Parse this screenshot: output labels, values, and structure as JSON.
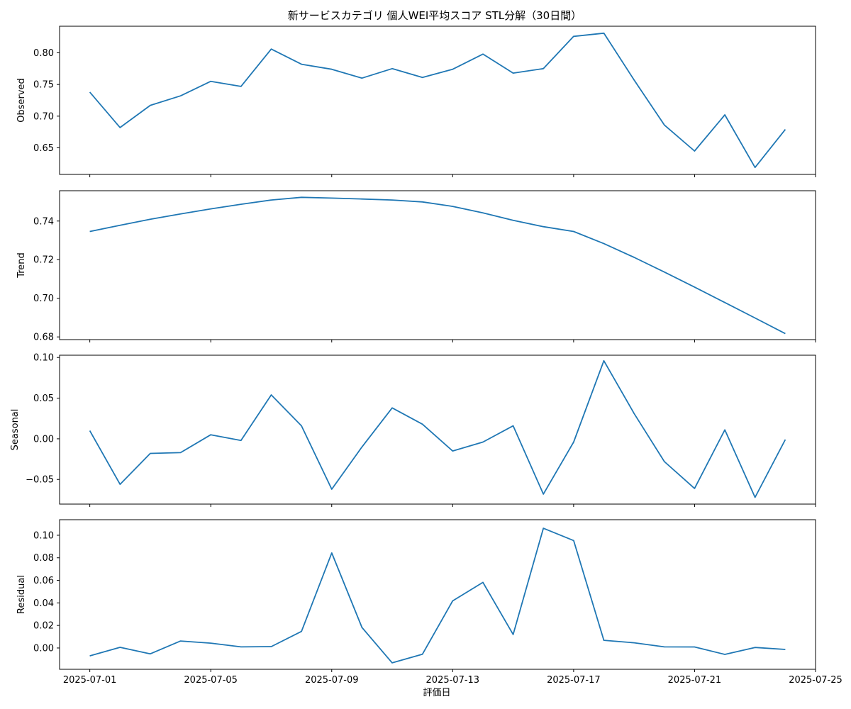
{
  "chart_data": {
    "type": "line",
    "title": "新サービスカテゴリ 個人WEI平均スコア STL分解（30日間）",
    "xlabel": "評価日",
    "x": [
      "2025-07-01",
      "2025-07-02",
      "2025-07-03",
      "2025-07-04",
      "2025-07-05",
      "2025-07-06",
      "2025-07-07",
      "2025-07-08",
      "2025-07-09",
      "2025-07-10",
      "2025-07-11",
      "2025-07-12",
      "2025-07-13",
      "2025-07-14",
      "2025-07-15",
      "2025-07-16",
      "2025-07-17",
      "2025-07-18",
      "2025-07-19",
      "2025-07-20",
      "2025-07-21",
      "2025-07-22",
      "2025-07-23",
      "2025-07-24"
    ],
    "xlim": [
      "2025-06-30",
      "2025-07-25"
    ],
    "x_ticks": [
      "2025-07-01",
      "2025-07-05",
      "2025-07-09",
      "2025-07-13",
      "2025-07-17",
      "2025-07-21",
      "2025-07-25"
    ],
    "color": "#1f77b4",
    "panels": [
      {
        "ylabel": "Observed",
        "ylim": [
          0.608,
          0.842
        ],
        "yticks": [
          "0.65",
          "0.70",
          "0.75",
          "0.80"
        ],
        "values": [
          0.738,
          0.682,
          0.717,
          0.732,
          0.755,
          0.747,
          0.806,
          0.782,
          0.774,
          0.76,
          0.775,
          0.761,
          0.774,
          0.798,
          0.768,
          0.775,
          0.826,
          0.831,
          0.757,
          0.686,
          0.645,
          0.702,
          0.619,
          0.679
        ]
      },
      {
        "ylabel": "Trend",
        "ylim": [
          0.6786,
          0.7557
        ],
        "yticks": [
          "0.68",
          "0.70",
          "0.72",
          "0.74"
        ],
        "values": [
          0.7346,
          0.7378,
          0.7409,
          0.7437,
          0.7463,
          0.7487,
          0.7509,
          0.7523,
          0.7519,
          0.7514,
          0.7509,
          0.7499,
          0.7476,
          0.7442,
          0.7404,
          0.7371,
          0.7346,
          0.7283,
          0.7212,
          0.7136,
          0.7058,
          0.6978,
          0.6898,
          0.6817
        ]
      },
      {
        "ylabel": "Seasonal",
        "ylim": [
          -0.0803,
          0.1028
        ],
        "yticks": [
          "−0.05",
          "0.00",
          "0.05",
          "0.10"
        ],
        "values": [
          0.01,
          -0.056,
          -0.018,
          -0.017,
          0.005,
          -0.002,
          0.054,
          0.016,
          -0.062,
          -0.01,
          0.038,
          0.018,
          -0.015,
          -0.004,
          0.016,
          -0.068,
          -0.004,
          0.096,
          0.031,
          -0.028,
          -0.061,
          0.011,
          -0.072,
          -0.001
        ]
      },
      {
        "ylabel": "Residual",
        "ylim": [
          -0.0189,
          0.1138
        ],
        "yticks": [
          "0.00",
          "0.02",
          "0.04",
          "0.06",
          "0.08",
          "0.10"
        ],
        "values": [
          -0.007,
          0.0006,
          -0.0052,
          0.0062,
          0.0043,
          0.001,
          0.0012,
          0.0147,
          0.0843,
          0.0182,
          -0.0132,
          -0.0055,
          0.0418,
          0.0582,
          0.012,
          0.1062,
          0.0953,
          0.0068,
          0.0046,
          0.001,
          0.0009,
          -0.0057,
          0.0005,
          -0.0013
        ]
      }
    ]
  }
}
